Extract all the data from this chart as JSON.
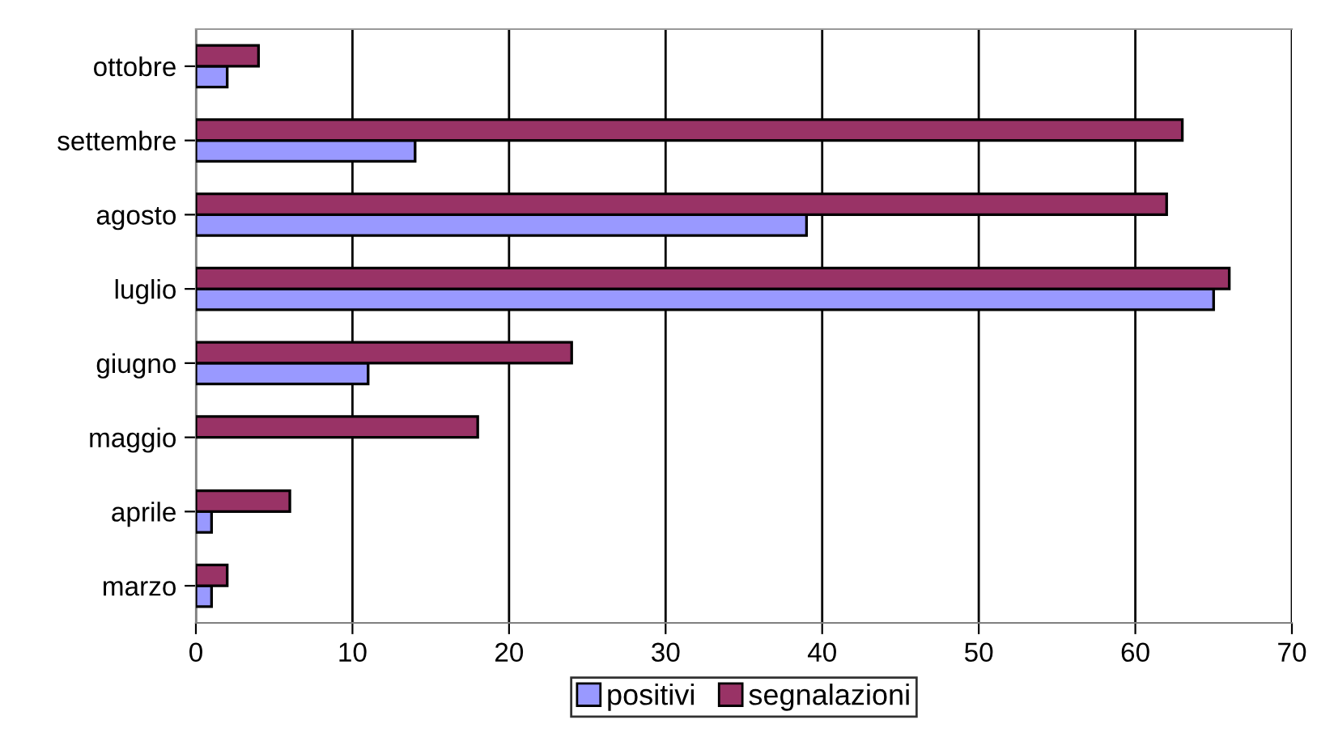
{
  "chart_data": {
    "type": "bar",
    "orientation": "horizontal",
    "categories": [
      "ottobre",
      "settembre",
      "agosto",
      "luglio",
      "giugno",
      "maggio",
      "aprile",
      "marzo"
    ],
    "series": [
      {
        "name": "positivi",
        "color": "#9999ff",
        "values": [
          2,
          14,
          39,
          65,
          11,
          null,
          1,
          1
        ]
      },
      {
        "name": "segnalazioni",
        "color": "#993366",
        "values": [
          4,
          63,
          62,
          66,
          24,
          18,
          6,
          2
        ]
      }
    ],
    "xlim": [
      0,
      70
    ],
    "xticks": [
      0,
      10,
      20,
      30,
      40,
      50,
      60,
      70
    ],
    "grid": "x",
    "legend": "bottom"
  }
}
